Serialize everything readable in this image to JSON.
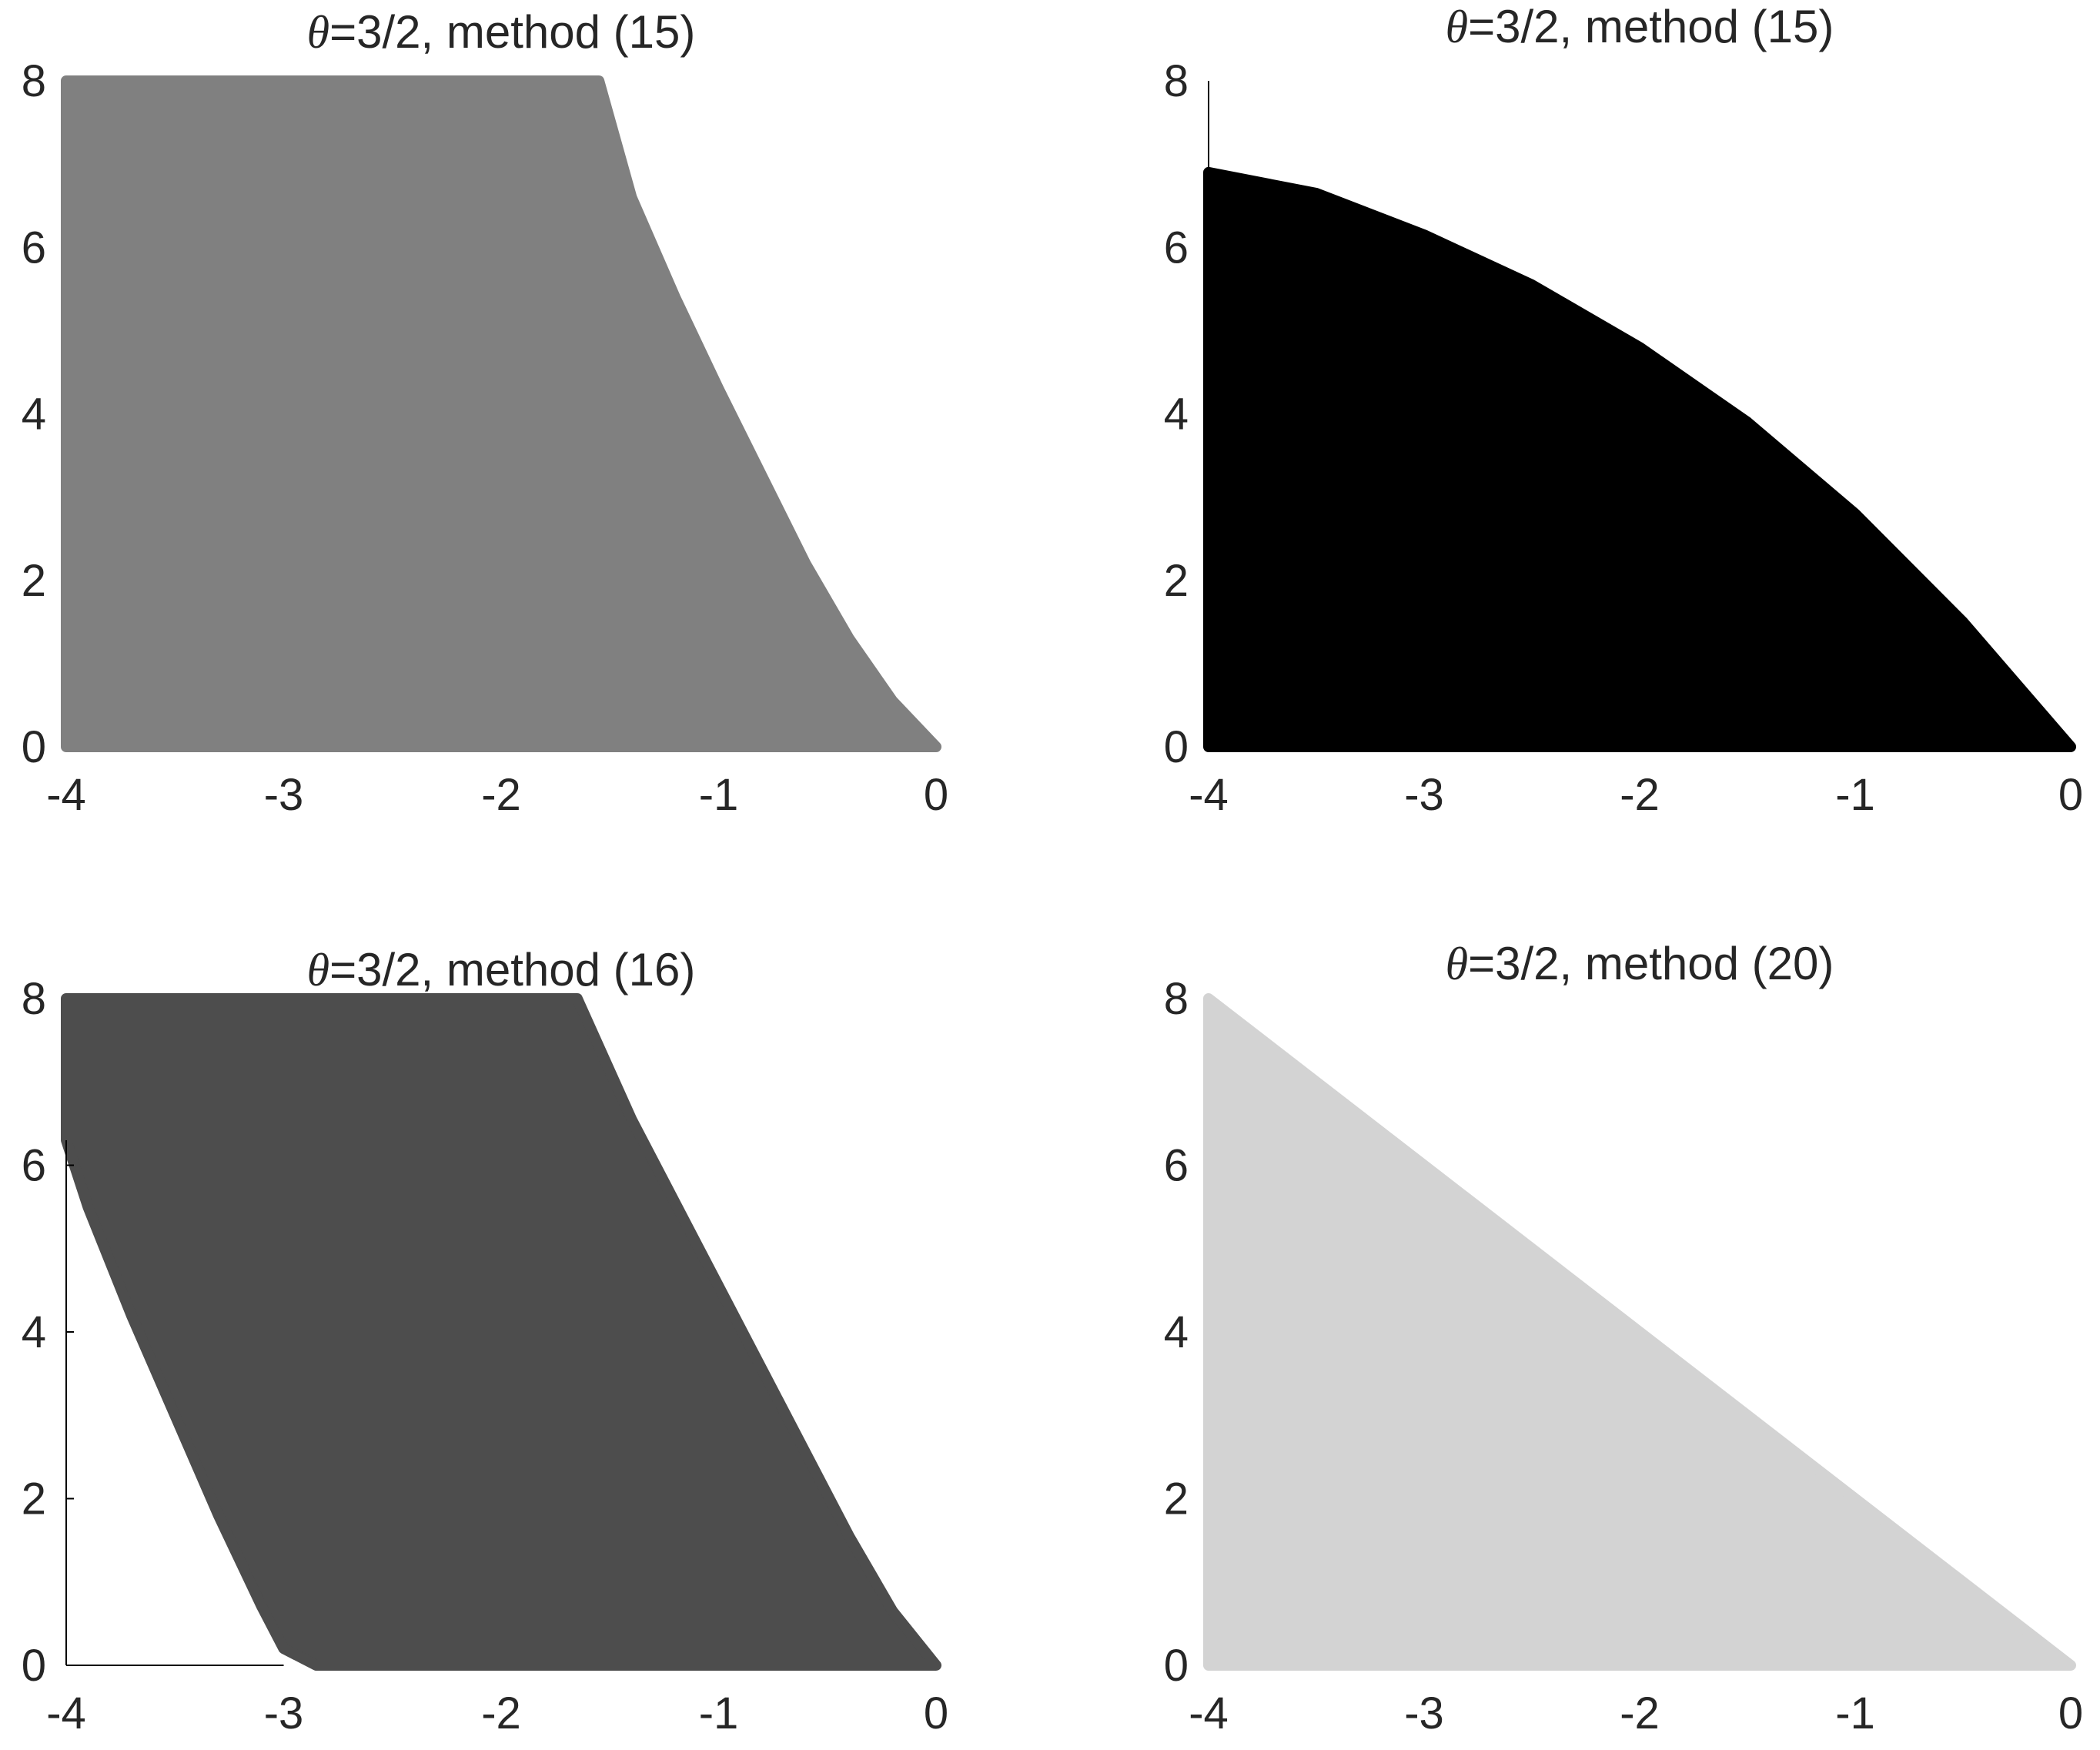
{
  "chart_data": [
    {
      "type": "area",
      "title_symbol": "θ",
      "title_text": "=3/2, method (15)",
      "xlim": [
        -4,
        0
      ],
      "ylim": [
        0,
        8
      ],
      "xticks": [
        -4,
        -3,
        -2,
        -1,
        0
      ],
      "xtick_labels": [
        "-4",
        "-3",
        "-2",
        "-1",
        "0"
      ],
      "yticks": [
        0,
        2,
        4,
        6,
        8
      ],
      "ytick_labels": [
        "0",
        "2",
        "4",
        "6",
        "8"
      ],
      "axes_lines": "none",
      "grid": false,
      "fill_color": "#808080",
      "region": {
        "x": [
          -4.0,
          -1.55,
          -1.4,
          -1.2,
          -1.0,
          -0.8,
          -0.6,
          -0.4,
          -0.2,
          0.0,
          -4.0
        ],
        "y": [
          8.0,
          8.0,
          6.6,
          5.4,
          4.3,
          3.25,
          2.2,
          1.3,
          0.55,
          0.0,
          0.0
        ]
      }
    },
    {
      "type": "area",
      "title_symbol": "θ",
      "title_text": "=3/2, method (15)",
      "xlim": [
        -4,
        0
      ],
      "ylim": [
        0,
        8
      ],
      "xticks": [
        -4,
        -3,
        -2,
        -1,
        0
      ],
      "xtick_labels": [
        "-4",
        "-3",
        "-2",
        "-1",
        "0"
      ],
      "yticks": [
        0,
        2,
        4,
        6,
        8
      ],
      "ytick_labels": [
        "0",
        "2",
        "4",
        "6",
        "8"
      ],
      "axes_lines": "y-axis stub",
      "axis_stub": {
        "x": -4.0,
        "y": [
          6.9,
          8.0
        ]
      },
      "grid": false,
      "fill_color": "#000000",
      "region": {
        "x": [
          -4.0,
          -3.5,
          -3.0,
          -2.5,
          -2.0,
          -1.5,
          -1.0,
          -0.5,
          0.0,
          -4.0
        ],
        "y": [
          6.9,
          6.65,
          6.15,
          5.55,
          4.8,
          3.9,
          2.8,
          1.5,
          0.0,
          0.0
        ]
      }
    },
    {
      "type": "area",
      "title_symbol": "θ",
      "title_text": "=3/2, method (16)",
      "xlim": [
        -4,
        0
      ],
      "ylim": [
        0,
        8
      ],
      "xticks": [
        -4,
        -3,
        -2,
        -1,
        0
      ],
      "xtick_labels": [
        "-4",
        "-3",
        "-2",
        "-1",
        "0"
      ],
      "yticks": [
        0,
        2,
        4,
        6,
        8
      ],
      "ytick_labels": [
        "0",
        "2",
        "4",
        "6",
        "8"
      ],
      "axes_lines": "box left and bottom",
      "box": {
        "x": [
          -4.0,
          -3.0
        ],
        "y": [
          0.0,
          6.3
        ]
      },
      "grid": false,
      "fill_color": "#4d4d4d",
      "region": {
        "x": [
          -4.0,
          -1.65,
          -1.4,
          -1.2,
          -1.0,
          -0.8,
          -0.6,
          -0.4,
          -0.2,
          0.0,
          -2.85,
          -3.0,
          -3.1,
          -3.3,
          -3.5,
          -3.7,
          -3.9,
          -4.0
        ],
        "y": [
          8.0,
          8.0,
          6.55,
          5.55,
          4.55,
          3.55,
          2.55,
          1.55,
          0.65,
          0.0,
          0.0,
          0.2,
          0.7,
          1.8,
          3.0,
          4.2,
          5.5,
          6.3
        ]
      }
    },
    {
      "type": "area",
      "title_symbol": "θ",
      "title_text": "=3/2, method (20)",
      "xlim": [
        -4,
        0
      ],
      "ylim": [
        0,
        8
      ],
      "xticks": [
        -4,
        -3,
        -2,
        -1,
        0
      ],
      "xtick_labels": [
        "-4",
        "-3",
        "-2",
        "-1",
        "0"
      ],
      "yticks": [
        0,
        2,
        4,
        6,
        8
      ],
      "ytick_labels": [
        "0",
        "2",
        "4",
        "6",
        "8"
      ],
      "axes_lines": "none",
      "grid": false,
      "fill_color": "#d3d3d3",
      "region": {
        "x": [
          -4.0,
          0.0,
          -4.0
        ],
        "y": [
          8.0,
          0.0,
          0.0
        ]
      }
    }
  ]
}
